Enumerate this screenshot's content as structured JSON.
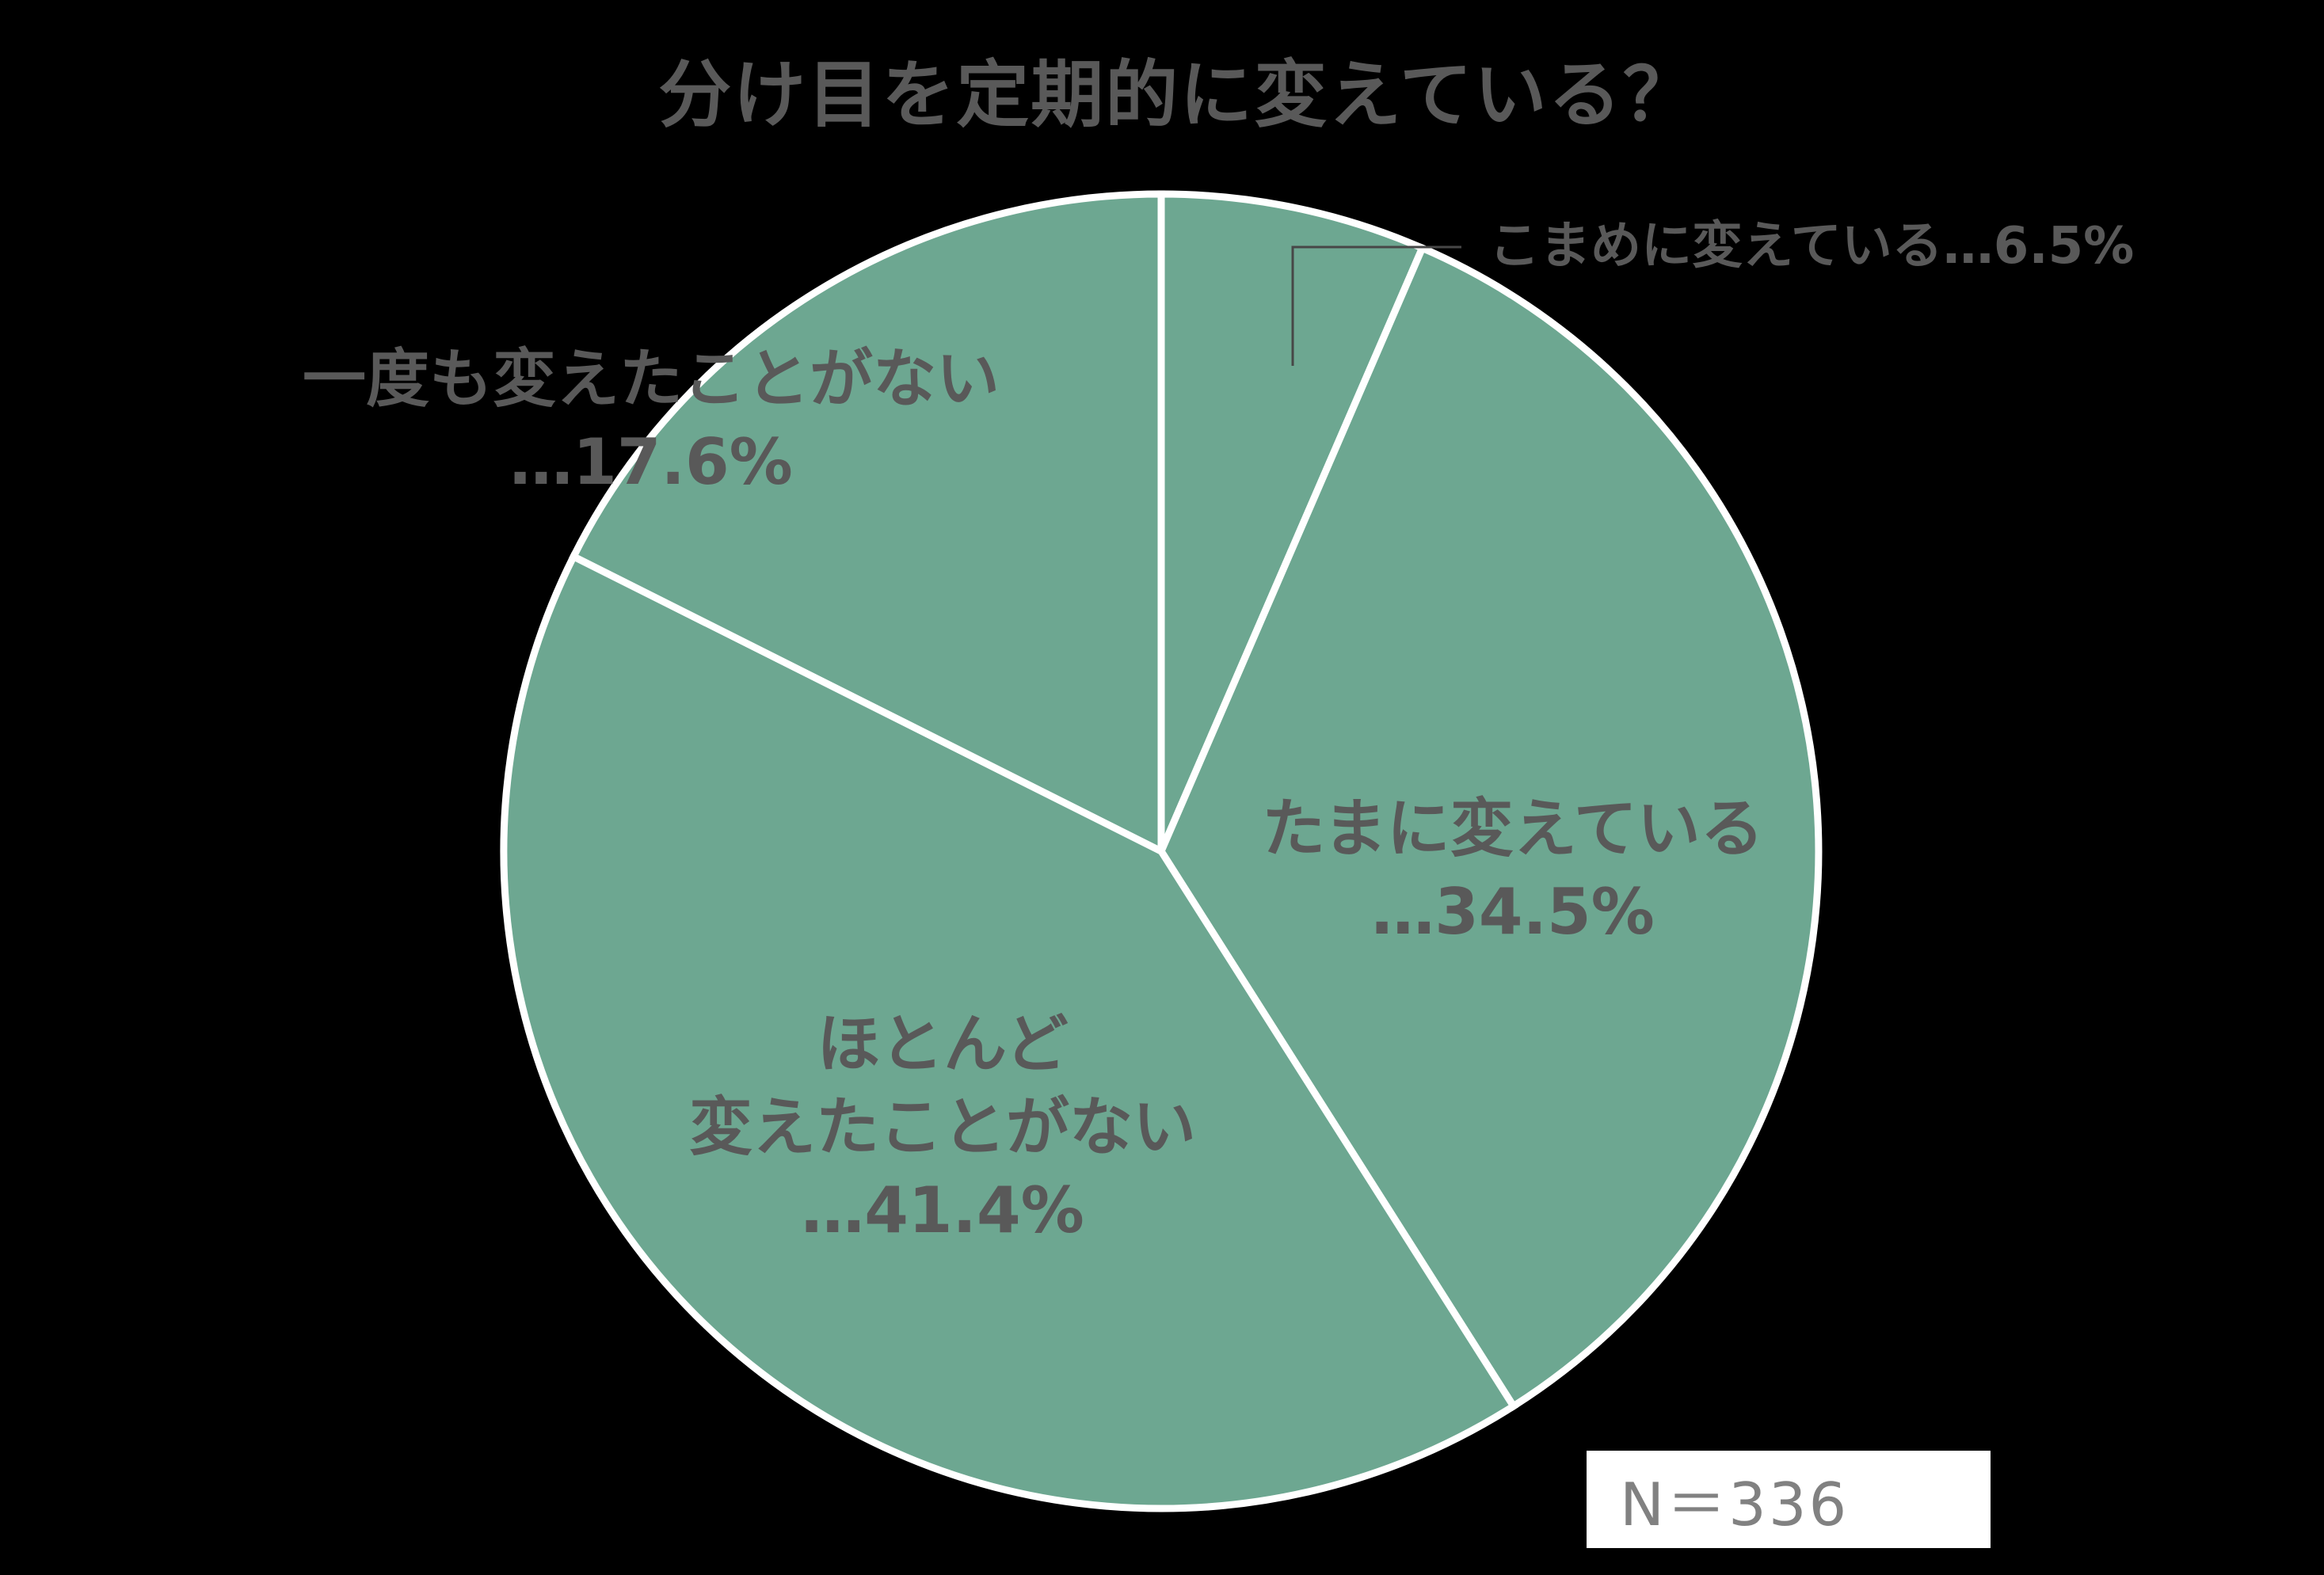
{
  "title": "分け目を定期的に変えている？",
  "sample_size_label": "N＝336",
  "colors": {
    "background": "#000000",
    "slice": "#6DA791",
    "slice_border": "#FFFFFF",
    "text": "#595959",
    "sample_box_bg": "#FFFFFF",
    "sample_text": "#818181",
    "callout_line": "#474747"
  },
  "chart_data": {
    "type": "pie",
    "title": "分け目を定期的に変えている？",
    "sample_size": 336,
    "start_angle_deg": 0,
    "direction": "clockwise",
    "legend_position": "none",
    "grid": false,
    "segments": [
      {
        "label": "こまめに変えている",
        "value": 6.5,
        "display": "こまめに変えている…6.5%",
        "label_lines": [
          "こまめに変えている…6.5%"
        ],
        "label_position": "outside-top-right",
        "has_leader_line": true
      },
      {
        "label": "たまに変えている",
        "value": 34.5,
        "display": "たまに変えている…34.5%",
        "label_lines": [
          "たまに変えている",
          "…34.5%"
        ],
        "label_position": "inside-right",
        "has_leader_line": false
      },
      {
        "label": "ほとんど変えたことがない",
        "value": 41.4,
        "display": "ほとんど変えたことがない…41.4%",
        "label_lines": [
          "ほとんど",
          "変えたことがない",
          "…41.4%"
        ],
        "label_position": "inside-bottom-left",
        "has_leader_line": false
      },
      {
        "label": "一度も変えたことがない",
        "value": 17.6,
        "display": "一度も変えたことがない…17.6%",
        "label_lines": [
          "一度も変えたことがない",
          "…17.6%"
        ],
        "label_position": "outside-top-left",
        "has_leader_line": false
      }
    ]
  }
}
